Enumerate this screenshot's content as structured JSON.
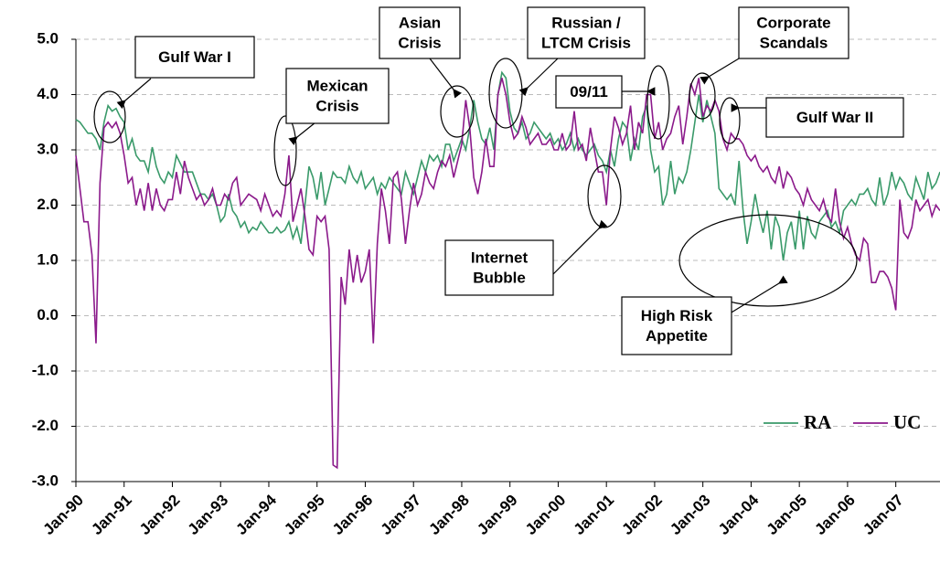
{
  "chart_data": {
    "type": "line",
    "categories": [
      "Jan-90",
      null,
      null,
      null,
      null,
      null,
      null,
      null,
      null,
      null,
      null,
      null,
      "Jan-91",
      null,
      null,
      null,
      null,
      null,
      null,
      null,
      null,
      null,
      null,
      null,
      "Jan-92",
      null,
      null,
      null,
      null,
      null,
      null,
      null,
      null,
      null,
      null,
      null,
      "Jan-93",
      null,
      null,
      null,
      null,
      null,
      null,
      null,
      null,
      null,
      null,
      null,
      "Jan-94",
      null,
      null,
      null,
      null,
      null,
      null,
      null,
      null,
      null,
      null,
      null,
      "Jan-95",
      null,
      null,
      null,
      null,
      null,
      null,
      null,
      null,
      null,
      null,
      null,
      "Jan-96",
      null,
      null,
      null,
      null,
      null,
      null,
      null,
      null,
      null,
      null,
      null,
      "Jan-97",
      null,
      null,
      null,
      null,
      null,
      null,
      null,
      null,
      null,
      null,
      null,
      "Jan-98",
      null,
      null,
      null,
      null,
      null,
      null,
      null,
      null,
      null,
      null,
      null,
      "Jan-99",
      null,
      null,
      null,
      null,
      null,
      null,
      null,
      null,
      null,
      null,
      null,
      "Jan-00",
      null,
      null,
      null,
      null,
      null,
      null,
      null,
      null,
      null,
      null,
      null,
      "Jan-01",
      null,
      null,
      null,
      null,
      null,
      null,
      null,
      null,
      null,
      null,
      null,
      "Jan-02",
      null,
      null,
      null,
      null,
      null,
      null,
      null,
      null,
      null,
      null,
      null,
      "Jan-03",
      null,
      null,
      null,
      null,
      null,
      null,
      null,
      null,
      null,
      null,
      null,
      "Jan-04",
      null,
      null,
      null,
      null,
      null,
      null,
      null,
      null,
      null,
      null,
      null,
      "Jan-05",
      null,
      null,
      null,
      null,
      null,
      null,
      null,
      null,
      null,
      null,
      null,
      "Jan-06",
      null,
      null,
      null,
      null,
      null,
      null,
      null,
      null,
      null,
      null,
      null,
      "Jan-07",
      null,
      null,
      null,
      null,
      null,
      null,
      null,
      null,
      null,
      null,
      null
    ],
    "series": [
      {
        "name": "RA",
        "color": "#3a9a6a",
        "values": [
          3.55,
          3.5,
          3.4,
          3.3,
          3.3,
          3.2,
          3.0,
          3.5,
          3.8,
          3.7,
          3.75,
          3.6,
          3.5,
          3.0,
          3.2,
          2.9,
          2.8,
          2.8,
          2.6,
          3.05,
          2.7,
          2.5,
          2.4,
          2.6,
          2.5,
          2.9,
          2.75,
          2.6,
          2.6,
          2.6,
          2.4,
          2.2,
          2.2,
          2.1,
          2.2,
          2.0,
          1.7,
          1.8,
          2.2,
          1.9,
          1.8,
          1.6,
          1.7,
          1.5,
          1.6,
          1.55,
          1.7,
          1.6,
          1.5,
          1.5,
          1.6,
          1.5,
          1.55,
          1.7,
          1.4,
          1.6,
          1.3,
          2.0,
          2.7,
          2.5,
          2.1,
          2.6,
          2.0,
          2.3,
          2.6,
          2.5,
          2.5,
          2.4,
          2.7,
          2.5,
          2.4,
          2.6,
          2.3,
          2.4,
          2.5,
          2.2,
          2.4,
          2.3,
          2.5,
          2.4,
          2.3,
          2.2,
          2.6,
          2.4,
          2.2,
          2.5,
          2.8,
          2.6,
          2.9,
          2.8,
          2.9,
          2.7,
          3.1,
          3.1,
          2.8,
          3.0,
          3.2,
          3.0,
          3.4,
          3.9,
          3.5,
          3.2,
          3.1,
          3.4,
          3.0,
          4.0,
          4.4,
          4.3,
          3.7,
          3.4,
          3.3,
          3.5,
          3.2,
          3.3,
          3.5,
          3.4,
          3.3,
          3.2,
          3.3,
          3.1,
          3.2,
          3.0,
          3.1,
          3.3,
          3.0,
          3.2,
          3.0,
          2.9,
          3.0,
          3.1,
          2.9,
          2.8,
          2.6,
          3.0,
          2.7,
          3.2,
          3.5,
          3.4,
          2.8,
          3.2,
          3.0,
          3.6,
          3.8,
          3.0,
          2.6,
          2.7,
          2.0,
          2.2,
          2.8,
          2.2,
          2.5,
          2.4,
          2.6,
          3.0,
          3.5,
          4.0,
          3.5,
          3.9,
          3.6,
          3.3,
          2.3,
          2.2,
          2.1,
          2.2,
          2.0,
          2.8,
          1.9,
          1.3,
          1.7,
          2.2,
          1.8,
          1.5,
          1.9,
          1.2,
          1.8,
          1.6,
          1.0,
          1.5,
          1.7,
          1.2,
          1.9,
          1.2,
          1.8,
          1.5,
          1.4,
          1.7,
          1.8,
          1.9,
          1.6,
          1.7,
          1.5,
          1.9,
          2.0,
          2.1,
          2.0,
          2.2,
          2.2,
          2.3,
          2.1,
          2.0,
          2.5,
          2.0,
          2.2,
          2.6,
          2.3,
          2.5,
          2.4,
          2.2,
          2.1,
          2.5,
          2.3,
          2.1,
          2.6,
          2.3,
          2.4,
          2.6
        ]
      },
      {
        "name": "UC",
        "color": "#8b1a8b",
        "values": [
          2.9,
          2.3,
          1.7,
          1.7,
          1.1,
          -0.5,
          2.4,
          3.4,
          3.5,
          3.4,
          3.5,
          3.3,
          2.9,
          2.4,
          2.5,
          2.0,
          2.3,
          1.9,
          2.4,
          1.9,
          2.3,
          2.0,
          1.9,
          2.1,
          2.1,
          2.6,
          2.2,
          2.8,
          2.5,
          2.3,
          2.1,
          2.2,
          2.0,
          2.1,
          2.3,
          2.0,
          2.0,
          2.2,
          2.1,
          2.4,
          2.5,
          2.0,
          2.1,
          2.2,
          2.15,
          2.1,
          1.9,
          2.2,
          2.0,
          1.8,
          1.9,
          1.8,
          2.2,
          2.9,
          1.7,
          2.0,
          2.3,
          1.8,
          1.2,
          1.1,
          1.8,
          1.7,
          1.8,
          1.2,
          -2.7,
          -2.75,
          0.7,
          0.2,
          1.2,
          0.6,
          1.1,
          0.6,
          0.8,
          1.2,
          -0.5,
          1.3,
          2.3,
          1.9,
          1.3,
          2.5,
          2.6,
          2.1,
          1.3,
          1.9,
          2.4,
          2.0,
          2.2,
          2.6,
          2.4,
          2.3,
          2.6,
          2.8,
          2.7,
          2.9,
          2.5,
          2.8,
          3.1,
          3.9,
          3.4,
          2.5,
          2.2,
          2.6,
          3.2,
          2.7,
          2.7,
          4.0,
          4.3,
          4.0,
          3.5,
          3.2,
          3.3,
          3.6,
          3.4,
          3.1,
          3.2,
          3.3,
          3.1,
          3.1,
          3.2,
          3.0,
          3.0,
          3.3,
          3.0,
          3.1,
          3.7,
          3.0,
          3.1,
          2.8,
          3.4,
          3.0,
          2.6,
          2.6,
          2.0,
          3.0,
          3.6,
          3.4,
          3.1,
          3.3,
          3.8,
          3.0,
          3.5,
          3.3,
          4.0,
          4.0,
          3.2,
          3.5,
          3.0,
          3.2,
          3.3,
          3.6,
          3.8,
          3.1,
          3.6,
          4.2,
          4.0,
          4.3,
          3.6,
          3.8,
          3.7,
          3.9,
          3.7,
          3.2,
          3.0,
          3.3,
          3.2,
          3.2,
          3.1,
          2.9,
          2.8,
          2.9,
          2.7,
          2.6,
          2.7,
          2.5,
          2.4,
          2.7,
          2.3,
          2.6,
          2.5,
          2.3,
          2.2,
          2.0,
          2.3,
          2.1,
          2.0,
          1.9,
          2.1,
          1.8,
          1.7,
          2.3,
          1.7,
          1.4,
          1.6,
          1.3,
          1.1,
          1.0,
          1.4,
          1.3,
          0.6,
          0.6,
          0.8,
          0.8,
          0.7,
          0.5,
          0.1,
          2.1,
          1.5,
          1.4,
          1.6,
          2.1,
          1.9,
          2.0,
          2.1,
          1.8,
          2.0,
          1.9
        ]
      }
    ],
    "ylim": [
      -3,
      5
    ],
    "yticks": [
      {
        "value": -3,
        "label": "-3.0"
      },
      {
        "value": -2,
        "label": "-2.0"
      },
      {
        "value": -1,
        "label": "-1.0"
      },
      {
        "value": 0,
        "label": "0.0"
      },
      {
        "value": 1,
        "label": "1.0"
      },
      {
        "value": 2,
        "label": "2.0"
      },
      {
        "value": 3,
        "label": "3.0"
      },
      {
        "value": 4,
        "label": "4.0"
      },
      {
        "value": 5,
        "label": "5.0"
      }
    ],
    "grid": true,
    "legend": "lower right",
    "annotations": [
      {
        "lines": [
          "Gulf War I"
        ]
      },
      {
        "lines": [
          "Mexican",
          "Crisis"
        ]
      },
      {
        "lines": [
          "Asian",
          "Crisis"
        ]
      },
      {
        "lines": [
          "Russian /",
          "LTCM Crisis"
        ]
      },
      {
        "lines": [
          "09/11"
        ]
      },
      {
        "lines": [
          "Corporate",
          "Scandals"
        ]
      },
      {
        "lines": [
          "Gulf War II"
        ]
      },
      {
        "lines": [
          "Internet",
          "Bubble"
        ]
      },
      {
        "lines": [
          "High Risk",
          "Appetite"
        ]
      }
    ]
  }
}
